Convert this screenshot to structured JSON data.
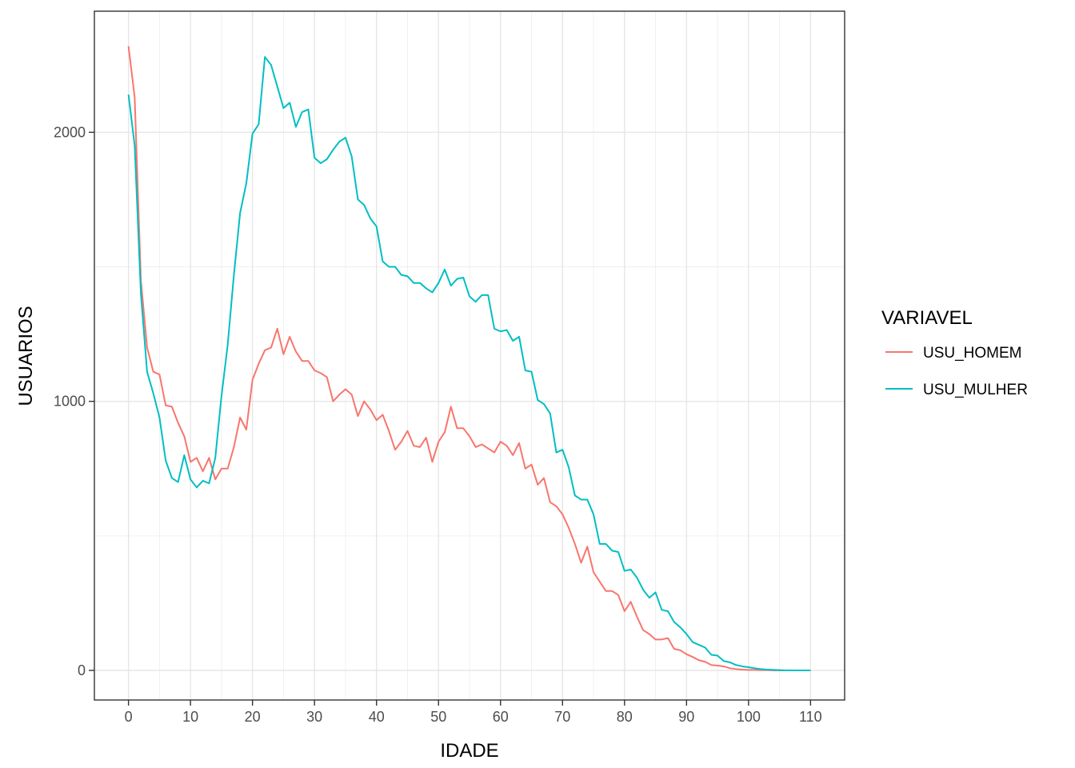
{
  "chart_data": {
    "type": "line",
    "xlabel": "IDADE",
    "ylabel": "USUARIOS",
    "xlim": [
      -5.5,
      115.5
    ],
    "ylim": [
      -110,
      2450
    ],
    "x_ticks": [
      0,
      10,
      20,
      30,
      40,
      50,
      60,
      70,
      80,
      90,
      100,
      110
    ],
    "x_tick_labels": [
      "0",
      "10",
      "20",
      "30",
      "40",
      "50",
      "60",
      "70",
      "80",
      "90",
      "100",
      "110"
    ],
    "y_ticks": [
      0,
      1000,
      2000
    ],
    "y_tick_labels": [
      "0",
      "1000",
      "2000"
    ],
    "grid": true,
    "legend": {
      "title": "VARIAVEL",
      "position": "right"
    },
    "series": [
      {
        "name": "USU_HOMEM",
        "color": "#F8766D",
        "points": [
          [
            0,
            2320
          ],
          [
            1,
            2130
          ],
          [
            2,
            1450
          ],
          [
            3,
            1200
          ],
          [
            4,
            1110
          ],
          [
            5,
            1100
          ],
          [
            6,
            985
          ],
          [
            7,
            980
          ],
          [
            8,
            920
          ],
          [
            9,
            870
          ],
          [
            10,
            775
          ],
          [
            11,
            790
          ],
          [
            12,
            740
          ],
          [
            13,
            790
          ],
          [
            14,
            710
          ],
          [
            15,
            750
          ],
          [
            16,
            750
          ],
          [
            17,
            830
          ],
          [
            18,
            940
          ],
          [
            19,
            895
          ],
          [
            20,
            1080
          ],
          [
            21,
            1140
          ],
          [
            22,
            1190
          ],
          [
            23,
            1200
          ],
          [
            24,
            1270
          ],
          [
            25,
            1175
          ],
          [
            26,
            1240
          ],
          [
            27,
            1185
          ],
          [
            28,
            1150
          ],
          [
            29,
            1150
          ],
          [
            30,
            1115
          ],
          [
            31,
            1105
          ],
          [
            32,
            1090
          ],
          [
            33,
            1000
          ],
          [
            34,
            1025
          ],
          [
            35,
            1045
          ],
          [
            36,
            1025
          ],
          [
            37,
            945
          ],
          [
            38,
            1000
          ],
          [
            39,
            970
          ],
          [
            40,
            930
          ],
          [
            41,
            950
          ],
          [
            42,
            890
          ],
          [
            43,
            820
          ],
          [
            44,
            850
          ],
          [
            45,
            890
          ],
          [
            46,
            835
          ],
          [
            47,
            830
          ],
          [
            48,
            865
          ],
          [
            49,
            775
          ],
          [
            50,
            850
          ],
          [
            51,
            885
          ],
          [
            52,
            980
          ],
          [
            53,
            900
          ],
          [
            54,
            900
          ],
          [
            55,
            870
          ],
          [
            56,
            830
          ],
          [
            57,
            840
          ],
          [
            58,
            825
          ],
          [
            59,
            810
          ],
          [
            60,
            850
          ],
          [
            61,
            835
          ],
          [
            62,
            800
          ],
          [
            63,
            845
          ],
          [
            64,
            750
          ],
          [
            65,
            765
          ],
          [
            66,
            690
          ],
          [
            67,
            715
          ],
          [
            68,
            625
          ],
          [
            69,
            610
          ],
          [
            70,
            580
          ],
          [
            71,
            530
          ],
          [
            72,
            470
          ],
          [
            73,
            400
          ],
          [
            74,
            460
          ],
          [
            75,
            365
          ],
          [
            76,
            330
          ],
          [
            77,
            295
          ],
          [
            78,
            295
          ],
          [
            79,
            280
          ],
          [
            80,
            220
          ],
          [
            81,
            255
          ],
          [
            82,
            200
          ],
          [
            83,
            150
          ],
          [
            84,
            135
          ],
          [
            85,
            115
          ],
          [
            86,
            115
          ],
          [
            87,
            120
          ],
          [
            88,
            80
          ],
          [
            89,
            75
          ],
          [
            90,
            60
          ],
          [
            91,
            50
          ],
          [
            92,
            38
          ],
          [
            93,
            32
          ],
          [
            94,
            20
          ],
          [
            95,
            18
          ],
          [
            96,
            15
          ],
          [
            97,
            8
          ],
          [
            98,
            5
          ],
          [
            99,
            3
          ],
          [
            100,
            2
          ],
          [
            101,
            2
          ],
          [
            102,
            1
          ],
          [
            103,
            1
          ],
          [
            104,
            0
          ],
          [
            105,
            0
          ],
          [
            106,
            0
          ],
          [
            107,
            0
          ],
          [
            108,
            0
          ],
          [
            109,
            0
          ],
          [
            110,
            0
          ]
        ]
      },
      {
        "name": "USU_MULHER",
        "color": "#00BFC4",
        "points": [
          [
            0,
            2140
          ],
          [
            1,
            1950
          ],
          [
            2,
            1400
          ],
          [
            3,
            1110
          ],
          [
            4,
            1030
          ],
          [
            5,
            940
          ],
          [
            6,
            780
          ],
          [
            7,
            715
          ],
          [
            8,
            700
          ],
          [
            9,
            800
          ],
          [
            10,
            710
          ],
          [
            11,
            680
          ],
          [
            12,
            705
          ],
          [
            13,
            695
          ],
          [
            14,
            790
          ],
          [
            15,
            1020
          ],
          [
            16,
            1210
          ],
          [
            17,
            1470
          ],
          [
            18,
            1700
          ],
          [
            19,
            1810
          ],
          [
            20,
            1995
          ],
          [
            21,
            2030
          ],
          [
            22,
            2280
          ],
          [
            23,
            2250
          ],
          [
            24,
            2170
          ],
          [
            25,
            2090
          ],
          [
            26,
            2110
          ],
          [
            27,
            2020
          ],
          [
            28,
            2075
          ],
          [
            29,
            2085
          ],
          [
            30,
            1905
          ],
          [
            31,
            1885
          ],
          [
            32,
            1900
          ],
          [
            33,
            1935
          ],
          [
            34,
            1965
          ],
          [
            35,
            1980
          ],
          [
            36,
            1910
          ],
          [
            37,
            1750
          ],
          [
            38,
            1730
          ],
          [
            39,
            1680
          ],
          [
            40,
            1650
          ],
          [
            41,
            1520
          ],
          [
            42,
            1500
          ],
          [
            43,
            1500
          ],
          [
            44,
            1470
          ],
          [
            45,
            1465
          ],
          [
            46,
            1440
          ],
          [
            47,
            1440
          ],
          [
            48,
            1420
          ],
          [
            49,
            1405
          ],
          [
            50,
            1440
          ],
          [
            51,
            1490
          ],
          [
            52,
            1430
          ],
          [
            53,
            1455
          ],
          [
            54,
            1460
          ],
          [
            55,
            1390
          ],
          [
            56,
            1370
          ],
          [
            57,
            1395
          ],
          [
            58,
            1395
          ],
          [
            59,
            1270
          ],
          [
            60,
            1260
          ],
          [
            61,
            1265
          ],
          [
            62,
            1225
          ],
          [
            63,
            1240
          ],
          [
            64,
            1115
          ],
          [
            65,
            1110
          ],
          [
            66,
            1005
          ],
          [
            67,
            990
          ],
          [
            68,
            955
          ],
          [
            69,
            810
          ],
          [
            70,
            820
          ],
          [
            71,
            755
          ],
          [
            72,
            650
          ],
          [
            73,
            635
          ],
          [
            74,
            635
          ],
          [
            75,
            580
          ],
          [
            76,
            470
          ],
          [
            77,
            470
          ],
          [
            78,
            445
          ],
          [
            79,
            440
          ],
          [
            80,
            370
          ],
          [
            81,
            375
          ],
          [
            82,
            345
          ],
          [
            83,
            300
          ],
          [
            84,
            270
          ],
          [
            85,
            290
          ],
          [
            86,
            225
          ],
          [
            87,
            220
          ],
          [
            88,
            180
          ],
          [
            89,
            160
          ],
          [
            90,
            135
          ],
          [
            91,
            105
          ],
          [
            92,
            95
          ],
          [
            93,
            85
          ],
          [
            94,
            58
          ],
          [
            95,
            55
          ],
          [
            96,
            35
          ],
          [
            97,
            30
          ],
          [
            98,
            20
          ],
          [
            99,
            15
          ],
          [
            100,
            12
          ],
          [
            101,
            8
          ],
          [
            102,
            5
          ],
          [
            103,
            3
          ],
          [
            104,
            2
          ],
          [
            105,
            1
          ],
          [
            106,
            0
          ],
          [
            107,
            0
          ],
          [
            108,
            0
          ],
          [
            109,
            0
          ],
          [
            110,
            0
          ]
        ]
      }
    ]
  }
}
